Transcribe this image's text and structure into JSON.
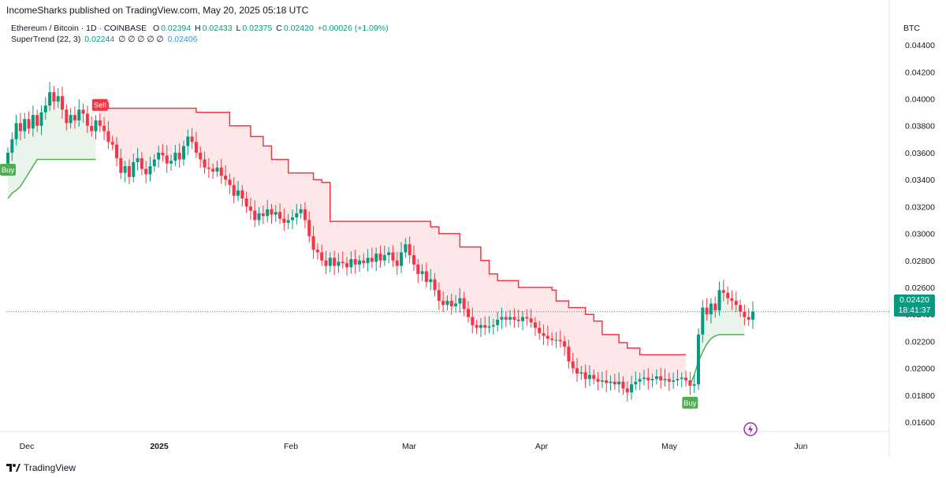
{
  "publish_line": "IncomeSharks published on TradingView.com, May 20, 2025 05:18 UTC",
  "header": {
    "symbol": "Ethereum / Bitcoin · 1D · COINBASE",
    "o_label": "O",
    "o_val": "0.02394",
    "h_label": "H",
    "h_val": "0.02433",
    "l_label": "L",
    "l_val": "0.02375",
    "c_label": "C",
    "c_val": "0.02420",
    "change": "+0.00026 (+1.09%)"
  },
  "indicator": {
    "name": "SuperTrend (22, 3)",
    "value1": "0.02244",
    "placeholders": "∅ ∅ ∅ ∅ ∅",
    "value2": "0.02406"
  },
  "currency": "BTC",
  "last_price": {
    "price": "0.02420",
    "countdown": "18:41:37"
  },
  "footer": {
    "brand": "TradingView"
  },
  "colors": {
    "up": "#089981",
    "down": "#f23645",
    "st_up": "#4caf50",
    "st_down": "#f23645"
  },
  "chart_data": {
    "type": "candlestick",
    "title": "Ethereum / Bitcoin · 1D · COINBASE",
    "ylim": [
      0.0153,
      0.045
    ],
    "y_ticks": [
      "0.01600",
      "0.01800",
      "0.02000",
      "0.02200",
      "0.02400",
      "0.02600",
      "0.02800",
      "0.03000",
      "0.03200",
      "0.03400",
      "0.03600",
      "0.03800",
      "0.04000",
      "0.04200",
      "0.04400"
    ],
    "x_ticks": [
      {
        "label": "Dec",
        "bold": false
      },
      {
        "label": "2025",
        "bold": true
      },
      {
        "label": "Feb",
        "bold": false
      },
      {
        "label": "Mar",
        "bold": false
      },
      {
        "label": "Apr",
        "bold": false
      },
      {
        "label": "May",
        "bold": false
      },
      {
        "label": "Jun",
        "bold": false
      }
    ],
    "close_path": [
      0.036,
      0.037,
      0.0382,
      0.0376,
      0.0385,
      0.0378,
      0.0388,
      0.038,
      0.039,
      0.0395,
      0.0405,
      0.0398,
      0.0402,
      0.0392,
      0.0382,
      0.0388,
      0.0384,
      0.0392,
      0.0389,
      0.038,
      0.0376,
      0.0384,
      0.038,
      0.0376,
      0.0368,
      0.0366,
      0.0356,
      0.0345,
      0.035,
      0.0342,
      0.0353,
      0.0356,
      0.0348,
      0.0344,
      0.035,
      0.0355,
      0.036,
      0.0358,
      0.0352,
      0.0354,
      0.036,
      0.0355,
      0.0365,
      0.0372,
      0.0368,
      0.036,
      0.0355,
      0.0349,
      0.0348,
      0.0346,
      0.0349,
      0.0343,
      0.034,
      0.0336,
      0.0328,
      0.0332,
      0.0326,
      0.032,
      0.0317,
      0.031,
      0.0315,
      0.0313,
      0.0318,
      0.0314,
      0.0316,
      0.0311,
      0.0308,
      0.031,
      0.0312,
      0.0315,
      0.0318,
      0.031,
      0.0298,
      0.0288,
      0.0286,
      0.028,
      0.0276,
      0.0282,
      0.0276,
      0.0279,
      0.0278,
      0.0275,
      0.0281,
      0.0277,
      0.028,
      0.0278,
      0.0282,
      0.0279,
      0.0285,
      0.028,
      0.0284,
      0.0286,
      0.028,
      0.0276,
      0.0286,
      0.0292,
      0.0284,
      0.0277,
      0.027,
      0.0272,
      0.0264,
      0.0266,
      0.0258,
      0.025,
      0.0247,
      0.025,
      0.0246,
      0.0248,
      0.0252,
      0.0244,
      0.0238,
      0.0232,
      0.023,
      0.0232,
      0.023,
      0.0231,
      0.0232,
      0.0236,
      0.0238,
      0.0236,
      0.0238,
      0.0236,
      0.0235,
      0.0238,
      0.0237,
      0.0234,
      0.023,
      0.0226,
      0.0224,
      0.0222,
      0.0221,
      0.0221,
      0.022,
      0.0216,
      0.0205,
      0.02,
      0.0196,
      0.0197,
      0.0192,
      0.0195,
      0.0192,
      0.019,
      0.0191,
      0.0189,
      0.019,
      0.0188,
      0.019,
      0.0185,
      0.0182,
      0.0188,
      0.019,
      0.0192,
      0.0193,
      0.0191,
      0.0192,
      0.0194,
      0.0191,
      0.0192,
      0.019,
      0.0191,
      0.0192,
      0.0193,
      0.0191,
      0.0187,
      0.0188,
      0.0225,
      0.0245,
      0.024,
      0.0248,
      0.0243,
      0.0258,
      0.0256,
      0.0252,
      0.025,
      0.0247,
      0.0242,
      0.0238,
      0.0236,
      0.0242
    ],
    "supertrend": [
      {
        "dir": "up",
        "from_idx": 0,
        "to_idx": 21,
        "levels": [
          0.0326,
          0.033,
          0.0332,
          0.0335,
          0.034,
          0.0345,
          0.035,
          0.0355,
          0.0355,
          0.0355,
          0.0355,
          0.0355,
          0.0355,
          0.0355,
          0.0355,
          0.0355,
          0.0355,
          0.0355,
          0.0355,
          0.0355,
          0.0355,
          0.0355
        ]
      },
      {
        "dir": "down",
        "from_idx": 22,
        "to_idx": 162,
        "levels_note": "stepping resistance",
        "steps": [
          [
            22,
            0.0397
          ],
          [
            24,
            0.0393
          ],
          [
            45,
            0.039
          ],
          [
            53,
            0.038
          ],
          [
            58,
            0.0372
          ],
          [
            61,
            0.0365
          ],
          [
            63,
            0.0355
          ],
          [
            67,
            0.0345
          ],
          [
            73,
            0.034
          ],
          [
            75,
            0.0338
          ],
          [
            77,
            0.0309
          ],
          [
            101,
            0.0305
          ],
          [
            103,
            0.03
          ],
          [
            108,
            0.029
          ],
          [
            113,
            0.028
          ],
          [
            115,
            0.027
          ],
          [
            117,
            0.0265
          ],
          [
            122,
            0.026
          ],
          [
            130,
            0.0258
          ],
          [
            131,
            0.025
          ],
          [
            134,
            0.0245
          ],
          [
            138,
            0.024
          ],
          [
            140,
            0.0235
          ],
          [
            142,
            0.0225
          ],
          [
            146,
            0.0219
          ],
          [
            148,
            0.0215
          ],
          [
            151,
            0.021
          ],
          [
            162,
            0.021
          ]
        ]
      },
      {
        "dir": "up",
        "from_idx": 163,
        "to_idx": 176,
        "levels": [
          0.0188,
          0.0195,
          0.0205,
          0.0212,
          0.0218,
          0.0222,
          0.0224,
          0.0225,
          0.0225,
          0.0225,
          0.0225,
          0.0225,
          0.0225,
          0.0225
        ]
      }
    ],
    "signals": [
      {
        "label": "Buy",
        "idx": 0,
        "type": "buy"
      },
      {
        "label": "Sell",
        "idx": 22,
        "type": "sell"
      },
      {
        "label": "Buy",
        "idx": 163,
        "type": "buy"
      }
    ],
    "last_price": 0.0242,
    "grid": false
  }
}
